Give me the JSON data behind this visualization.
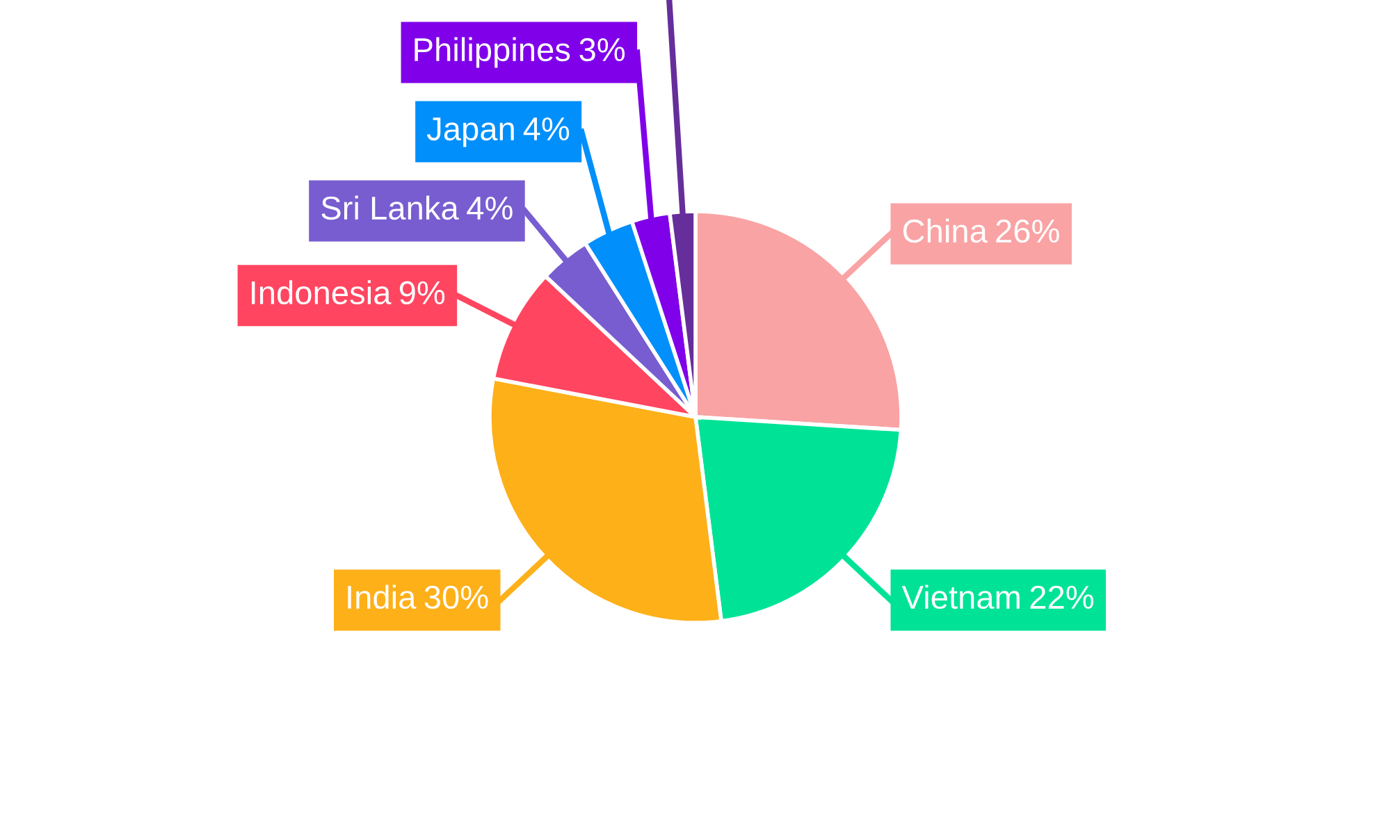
{
  "chart_data": {
    "type": "pie",
    "categories": [
      "China",
      "Vietnam",
      "India",
      "Indonesia",
      "Sri Lanka",
      "Japan",
      "Philippines",
      null
    ],
    "values": [
      26,
      22,
      30,
      9,
      4,
      4,
      3,
      2
    ],
    "colors": [
      "#f9a3a4",
      "#00e396",
      "#feb019",
      "#ff4560",
      "#775dd0",
      "#008ffb",
      "#8000ea",
      "#662e9b"
    ],
    "value_labels": [
      "26%",
      "22%",
      "30%",
      "9%",
      "4%",
      "4%",
      "3%",
      null
    ],
    "legend": false
  }
}
